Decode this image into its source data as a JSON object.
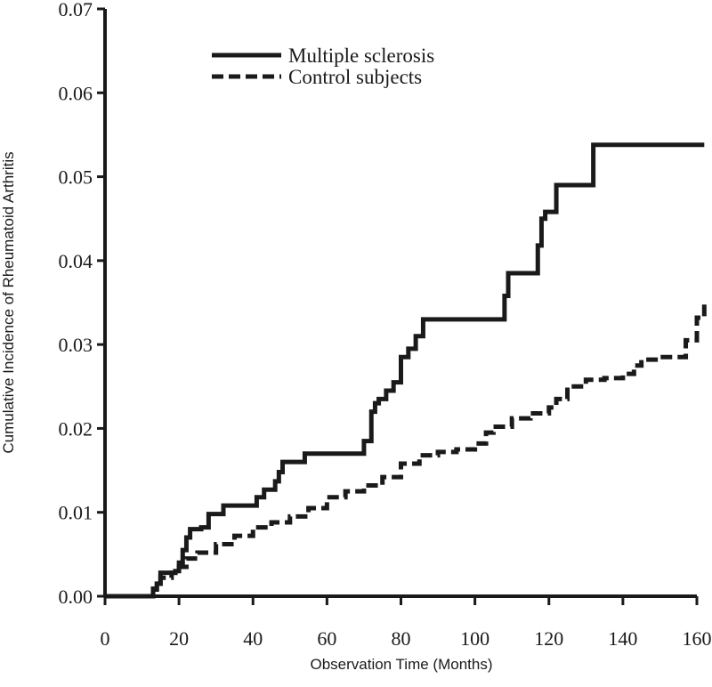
{
  "chart_data": {
    "type": "line",
    "xlabel": "Observation Time (Months)",
    "ylabel": "Cumulative Incidence of Rheumatoid Arthritis",
    "xlim": [
      0,
      160
    ],
    "ylim": [
      0,
      0.07
    ],
    "x_ticks": [
      0,
      20,
      40,
      60,
      80,
      100,
      120,
      140,
      160
    ],
    "y_ticks": [
      0.0,
      0.01,
      0.02,
      0.03,
      0.04,
      0.05,
      0.06,
      0.07
    ],
    "y_tick_labels": [
      "0.00",
      "0.01",
      "0.02",
      "0.03",
      "0.04",
      "0.05",
      "0.06",
      "0.07"
    ],
    "grid": false,
    "legend_position": "top-center",
    "step": true,
    "series": [
      {
        "name": "Multiple sclerosis",
        "style": "solid",
        "color": "#1a1a1a",
        "x": [
          0,
          13,
          14,
          15,
          19,
          20,
          21,
          22,
          23,
          26,
          28,
          32,
          40,
          41,
          43,
          45,
          46,
          47,
          48,
          53,
          54,
          67,
          70,
          71,
          72,
          73,
          74,
          76,
          78,
          80,
          82,
          84,
          86,
          108,
          109,
          117,
          118,
          119,
          122,
          132,
          162
        ],
        "y": [
          0.0,
          0.0008,
          0.0015,
          0.0028,
          0.003,
          0.004,
          0.0055,
          0.007,
          0.008,
          0.0082,
          0.0098,
          0.0108,
          0.0108,
          0.0118,
          0.0127,
          0.0127,
          0.0137,
          0.0148,
          0.016,
          0.016,
          0.017,
          0.017,
          0.0185,
          0.0185,
          0.022,
          0.023,
          0.0235,
          0.0245,
          0.0255,
          0.0285,
          0.0295,
          0.031,
          0.033,
          0.0358,
          0.0385,
          0.0418,
          0.045,
          0.0458,
          0.049,
          0.0538,
          0.0538
        ]
      },
      {
        "name": "Control subjects",
        "style": "dashed",
        "color": "#1a1a1a",
        "x": [
          0,
          12,
          13,
          14,
          15,
          18,
          20,
          22,
          25,
          30,
          35,
          40,
          45,
          50,
          55,
          60,
          65,
          70,
          75,
          80,
          85,
          90,
          95,
          100,
          103,
          105,
          110,
          115,
          120,
          122,
          125,
          130,
          135,
          140,
          143,
          145,
          150,
          155,
          157,
          160,
          162
        ],
        "y": [
          0.0,
          0.0003,
          0.0009,
          0.0015,
          0.0022,
          0.0028,
          0.0035,
          0.0045,
          0.0052,
          0.0062,
          0.0072,
          0.0082,
          0.0088,
          0.0095,
          0.0105,
          0.0118,
          0.0125,
          0.0132,
          0.0142,
          0.0158,
          0.0168,
          0.0172,
          0.0175,
          0.0182,
          0.0195,
          0.0202,
          0.0212,
          0.0218,
          0.0225,
          0.0235,
          0.025,
          0.0258,
          0.026,
          0.0265,
          0.0275,
          0.0282,
          0.0285,
          0.0285,
          0.0305,
          0.0332,
          0.0348
        ]
      }
    ]
  }
}
